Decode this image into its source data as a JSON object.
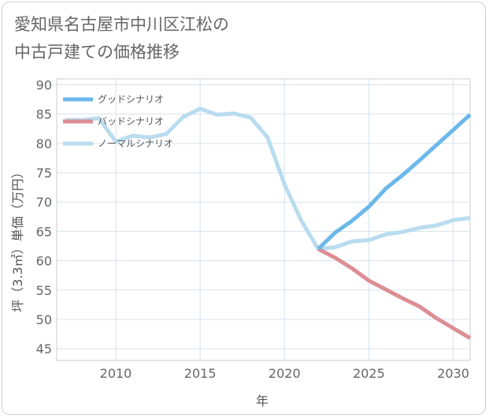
{
  "title_lines": [
    "愛知県名古屋市中川区江松の",
    "中古戸建ての価格推移"
  ],
  "chart_data": {
    "type": "line",
    "title": "愛知県名古屋市中川区江松の中古戸建ての価格推移",
    "xlabel": "年",
    "ylabel": "坪（3.3㎡）単価（万円）",
    "xlim": [
      2006.5,
      2031
    ],
    "ylim": [
      43,
      91
    ],
    "x_ticks": [
      2010,
      2015,
      2020,
      2025,
      2030
    ],
    "y_ticks": [
      45,
      50,
      55,
      60,
      65,
      70,
      75,
      80,
      85,
      90
    ],
    "grid": true,
    "legend_position": "top-left",
    "series": [
      {
        "name": "グッドシナリオ",
        "color": "#6cb8ea",
        "points": [
          [
            2022,
            62.0
          ],
          [
            2023,
            64.8
          ],
          [
            2024,
            66.8
          ],
          [
            2025,
            69.2
          ],
          [
            2026,
            72.3
          ],
          [
            2027,
            74.6
          ],
          [
            2028,
            77.1
          ],
          [
            2029,
            79.7
          ],
          [
            2030,
            82.3
          ],
          [
            2031,
            84.9
          ]
        ]
      },
      {
        "name": "バッドシナリオ",
        "color": "#dc8e95",
        "points": [
          [
            2022,
            62.0
          ],
          [
            2023,
            60.5
          ],
          [
            2024,
            58.7
          ],
          [
            2025,
            56.6
          ],
          [
            2026,
            55.1
          ],
          [
            2027,
            53.6
          ],
          [
            2028,
            52.2
          ],
          [
            2029,
            50.2
          ],
          [
            2030,
            48.5
          ],
          [
            2031,
            46.8
          ]
        ]
      },
      {
        "name": "ノーマルシナリオ",
        "color": "#b9dcee",
        "points": [
          [
            2007,
            84.0
          ],
          [
            2008,
            84.0
          ],
          [
            2009,
            84.3
          ],
          [
            2010,
            80.3
          ],
          [
            2011,
            81.3
          ],
          [
            2012,
            81.0
          ],
          [
            2013,
            81.6
          ],
          [
            2014,
            84.5
          ],
          [
            2015,
            85.9
          ],
          [
            2016,
            84.9
          ],
          [
            2017,
            85.1
          ],
          [
            2018,
            84.4
          ],
          [
            2019,
            81.0
          ],
          [
            2020,
            73.0
          ],
          [
            2021,
            66.8
          ],
          [
            2022,
            62.0
          ],
          [
            2023,
            62.3
          ],
          [
            2024,
            63.3
          ],
          [
            2025,
            63.5
          ],
          [
            2026,
            64.5
          ],
          [
            2027,
            64.9
          ],
          [
            2028,
            65.6
          ],
          [
            2029,
            66.0
          ],
          [
            2030,
            66.9
          ],
          [
            2031,
            67.3
          ]
        ]
      }
    ]
  }
}
